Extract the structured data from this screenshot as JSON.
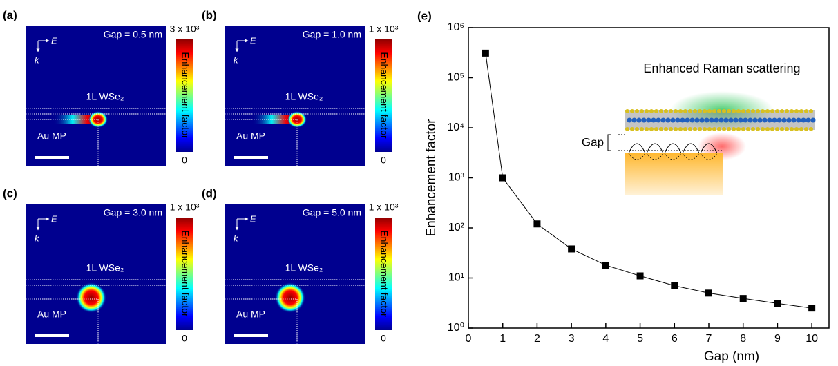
{
  "panels": [
    {
      "label": "(a)",
      "gap": "Gap = 0.5 nm",
      "layer": "1L WSe₂",
      "particle": "Au MP",
      "e_field": "E",
      "k_vector": "k",
      "cbar_max": "3 x 10³",
      "cbar_min": "0",
      "cbar_title": "Enhancement factor"
    },
    {
      "label": "(b)",
      "gap": "Gap = 1.0 nm",
      "layer": "1L WSe₂",
      "particle": "Au MP",
      "e_field": "E",
      "k_vector": "k",
      "cbar_max": "1 x 10³",
      "cbar_min": "0",
      "cbar_title": "Enhancement factor"
    },
    {
      "label": "(c)",
      "gap": "Gap = 3.0 nm",
      "layer": "1L WSe₂",
      "particle": "Au MP",
      "e_field": "E",
      "k_vector": "k",
      "cbar_max": "1 x 10³",
      "cbar_min": "0",
      "cbar_title": "Enhancement factor"
    },
    {
      "label": "(d)",
      "gap": "Gap = 5.0 nm",
      "layer": "1L WSe₂",
      "particle": "Au MP",
      "e_field": "E",
      "k_vector": "k",
      "cbar_max": "1 x 10³",
      "cbar_min": "0",
      "cbar_title": "Enhancement factor"
    }
  ],
  "chart_data": {
    "type": "line",
    "label": "(e)",
    "xlabel": "Gap (nm)",
    "ylabel": "Enhancement factor",
    "annotations": [
      "Enhanced Raman scattering",
      "Gap"
    ],
    "x": [
      0.5,
      1,
      2,
      3,
      4,
      5,
      6,
      7,
      8,
      9,
      10
    ],
    "values": [
      310000,
      1000,
      120,
      38,
      18,
      11,
      7,
      5,
      3.9,
      3.1,
      2.5
    ],
    "color": "#000000",
    "xlim": [
      0,
      10.5
    ],
    "xticks": [
      0,
      1,
      2,
      3,
      4,
      5,
      6,
      7,
      8,
      9,
      10
    ],
    "ylim": [
      1,
      1000000
    ],
    "yscale": "log",
    "yticks": [
      {
        "value": 1,
        "label": "10⁰"
      },
      {
        "value": 10,
        "label": "10¹"
      },
      {
        "value": 100,
        "label": "10²"
      },
      {
        "value": 1000,
        "label": "10³"
      },
      {
        "value": 10000,
        "label": "10⁴"
      },
      {
        "value": 100000,
        "label": "10⁵"
      },
      {
        "value": 1000000,
        "label": "10⁶"
      }
    ]
  }
}
